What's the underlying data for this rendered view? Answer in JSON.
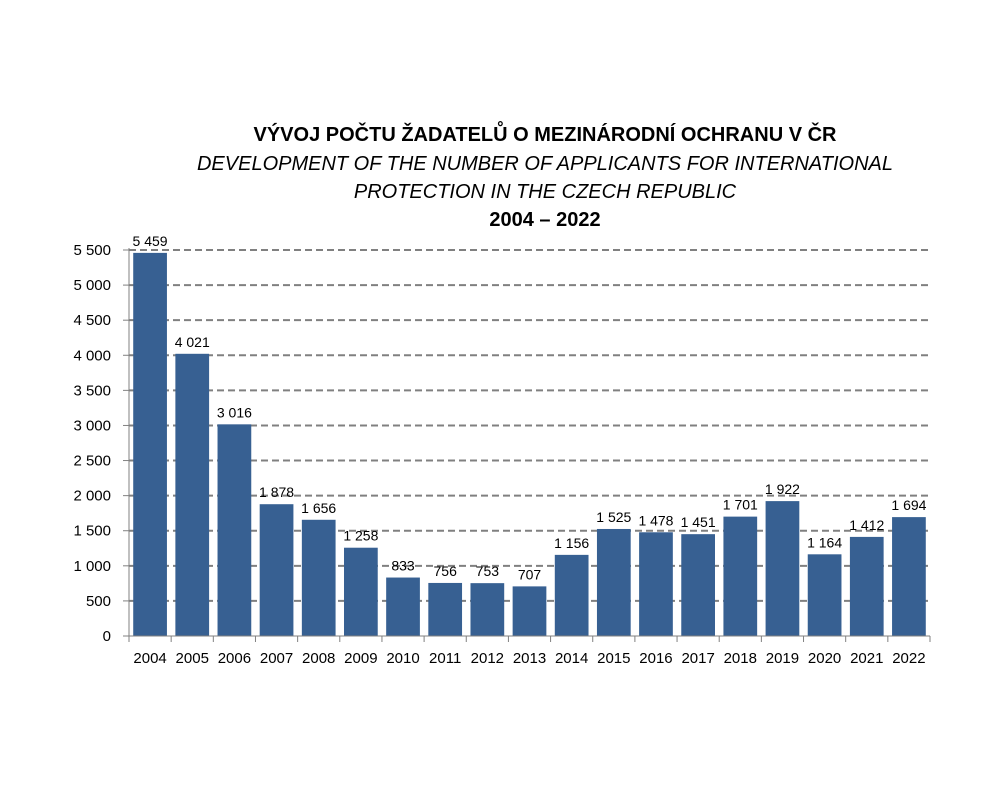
{
  "chart_data": {
    "type": "bar",
    "title_lines": [
      "VÝVOJ POČTU ŽADATELŮ O MEZINÁRODNÍ OCHRANU V ČR",
      "DEVELOPMENT OF THE NUMBER OF APPLICANTS FOR INTERNATIONAL",
      "PROTECTION IN THE CZECH REPUBLIC",
      "2004 – 2022"
    ],
    "categories": [
      "2004",
      "2005",
      "2006",
      "2007",
      "2008",
      "2009",
      "2010",
      "2011",
      "2012",
      "2013",
      "2014",
      "2015",
      "2016",
      "2017",
      "2018",
      "2019",
      "2020",
      "2021",
      "2022"
    ],
    "values": [
      5459,
      4021,
      3016,
      1878,
      1656,
      1258,
      833,
      756,
      753,
      707,
      1156,
      1525,
      1478,
      1451,
      1701,
      1922,
      1164,
      1412,
      1694
    ],
    "value_labels": [
      "5 459",
      "4 021",
      "3 016",
      "1 878",
      "1 656",
      "1 258",
      "833",
      "756",
      "753",
      "707",
      "1 156",
      "1 525",
      "1 478",
      "1 451",
      "1 701",
      "1 922",
      "1 164",
      "1 412",
      "1 694"
    ],
    "y_ticks": [
      0,
      500,
      1000,
      1500,
      2000,
      2500,
      3000,
      3500,
      4000,
      4500,
      5000,
      5500
    ],
    "y_tick_labels": [
      "0",
      "500",
      "1 000",
      "1 500",
      "2 000",
      "2 500",
      "3 000",
      "3 500",
      "4 000",
      "4 500",
      "5 000",
      "5 500"
    ],
    "ylim": [
      0,
      5500
    ],
    "grid": "dashed horizontal",
    "bar_color": "#376092",
    "grid_color": "#808080"
  }
}
